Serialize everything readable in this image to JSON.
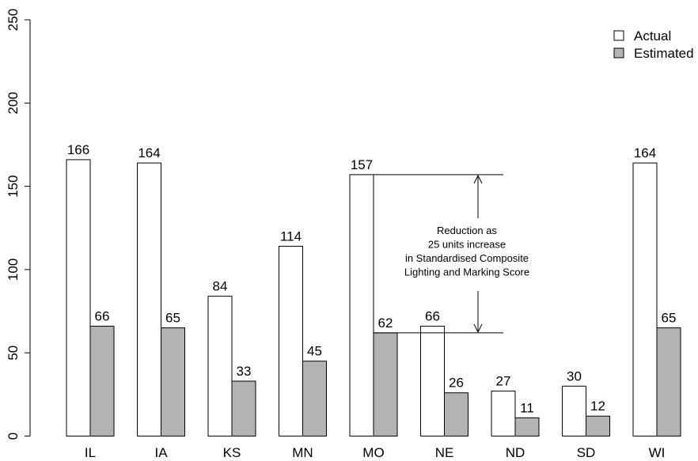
{
  "chart_data": {
    "type": "bar",
    "categories": [
      "IL",
      "IA",
      "KS",
      "MN",
      "MO",
      "NE",
      "ND",
      "SD",
      "WI"
    ],
    "series": [
      {
        "name": "Actual",
        "values": [
          166,
          164,
          84,
          114,
          157,
          66,
          27,
          30,
          164
        ],
        "color": "#ffffff"
      },
      {
        "name": "Estimated",
        "values": [
          66,
          65,
          33,
          45,
          62,
          26,
          11,
          12,
          65
        ],
        "color": "#b3b3b3"
      }
    ],
    "ylim": [
      0,
      250
    ],
    "yticks": [
      0,
      50,
      100,
      150,
      200,
      250
    ],
    "grid": false,
    "legend_position": "top-right",
    "annotation": {
      "lines": [
        "Reduction as",
        "25 units increase",
        "in Standardised Composite",
        "Lighting and Marking Score"
      ],
      "from_value": 157,
      "to_value": 62,
      "category": "MO"
    }
  }
}
